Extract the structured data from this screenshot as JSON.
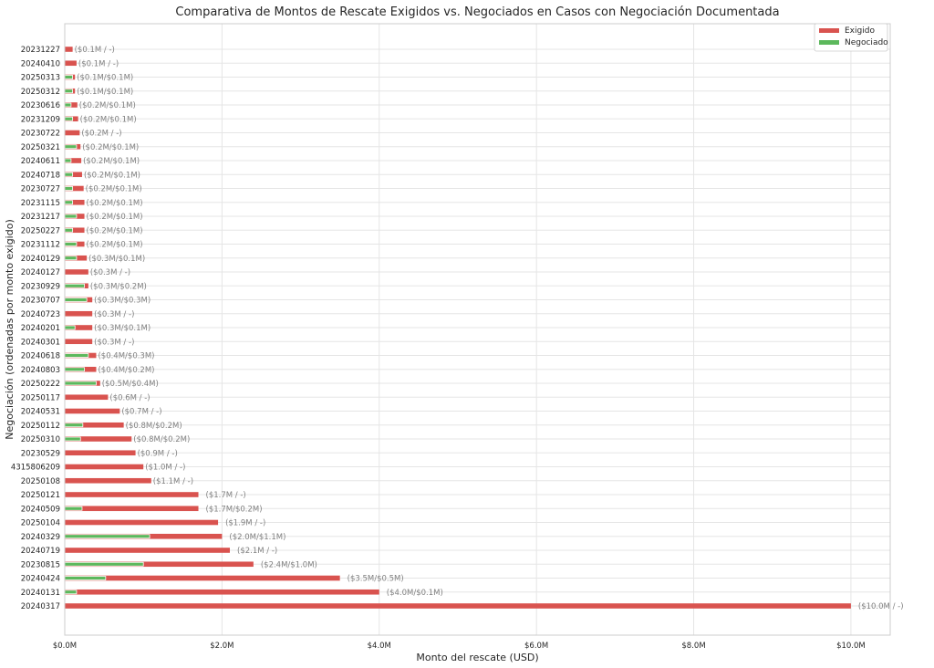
{
  "chart_data": {
    "type": "bar",
    "orientation": "horizontal",
    "title": "Comparativa de Montos de Rescate Exigidos vs. Negociados en Casos con Negociación Documentada",
    "xlabel": "Monto del rescate (USD)",
    "ylabel": "Negociación (ordenadas por monto exigido)",
    "xlim": [
      0,
      10.5
    ],
    "x_ticks": [
      "$0.0M",
      "$2.0M",
      "$4.0M",
      "$6.0M",
      "$8.0M",
      "$10.0M"
    ],
    "grid": true,
    "legend_position": "top-right",
    "series": [
      {
        "name": "Exigido",
        "color": "#d9534f"
      },
      {
        "name": "Negociado",
        "color": "#5cb85c"
      }
    ],
    "categories": [
      "20231227",
      "20240410",
      "20250313",
      "20250312",
      "20230616",
      "20231209",
      "20230722",
      "20250321",
      "20240611",
      "20240718",
      "20230727",
      "20231115",
      "20231217",
      "20250227",
      "20231112",
      "20240129",
      "20240127",
      "20230929",
      "20230707",
      "20240723",
      "20240201",
      "20240301",
      "20240618",
      "20240803",
      "20250222",
      "20250117",
      "20240531",
      "20250112",
      "20250310",
      "20230529",
      "4315806209",
      "20250108",
      "20250121",
      "20240509",
      "20250104",
      "20240329",
      "20240719",
      "20230815",
      "20240424",
      "20240131",
      "20240317"
    ],
    "demanded": [
      0.1,
      0.15,
      0.13,
      0.13,
      0.16,
      0.17,
      0.19,
      0.2,
      0.21,
      0.22,
      0.24,
      0.25,
      0.25,
      0.25,
      0.25,
      0.28,
      0.3,
      0.3,
      0.35,
      0.35,
      0.35,
      0.35,
      0.4,
      0.4,
      0.45,
      0.55,
      0.7,
      0.75,
      0.85,
      0.9,
      1.0,
      1.1,
      1.7,
      1.7,
      1.95,
      2.0,
      2.1,
      2.4,
      3.5,
      4.0,
      10.0
    ],
    "negotiated": [
      null,
      null,
      0.1,
      0.1,
      0.08,
      0.1,
      null,
      0.15,
      0.08,
      0.1,
      0.1,
      0.1,
      0.15,
      0.1,
      0.15,
      0.15,
      null,
      0.25,
      0.28,
      null,
      0.13,
      null,
      0.3,
      0.25,
      0.4,
      null,
      null,
      0.23,
      0.2,
      null,
      null,
      null,
      null,
      0.22,
      null,
      1.08,
      null,
      1.0,
      0.52,
      0.15,
      null
    ],
    "annotations": [
      "($0.1M / -)",
      "($0.1M / -)",
      "($0.1M/$0.1M)",
      "($0.1M/$0.1M)",
      "($0.2M/$0.1M)",
      "($0.2M/$0.1M)",
      "($0.2M / -)",
      "($0.2M/$0.1M)",
      "($0.2M/$0.1M)",
      "($0.2M/$0.1M)",
      "($0.2M/$0.1M)",
      "($0.2M/$0.1M)",
      "($0.2M/$0.1M)",
      "($0.2M/$0.1M)",
      "($0.2M/$0.1M)",
      "($0.3M/$0.1M)",
      "($0.3M / -)",
      "($0.3M/$0.2M)",
      "($0.3M/$0.3M)",
      "($0.3M / -)",
      "($0.3M/$0.1M)",
      "($0.3M / -)",
      "($0.4M/$0.3M)",
      "($0.4M/$0.2M)",
      "($0.5M/$0.4M)",
      "($0.6M / -)",
      "($0.7M / -)",
      "($0.8M/$0.2M)",
      "($0.8M/$0.2M)",
      "($0.9M / -)",
      "($1.0M / -)",
      "($1.1M / -)",
      "($1.7M / -)",
      "($1.7M/$0.2M)",
      "($1.9M / -)",
      "($2.0M/$1.1M)",
      "($2.1M / -)",
      "($2.4M/$1.0M)",
      "($3.5M/$0.5M)",
      "($4.0M/$0.1M)",
      "($10.0M / -)"
    ]
  }
}
